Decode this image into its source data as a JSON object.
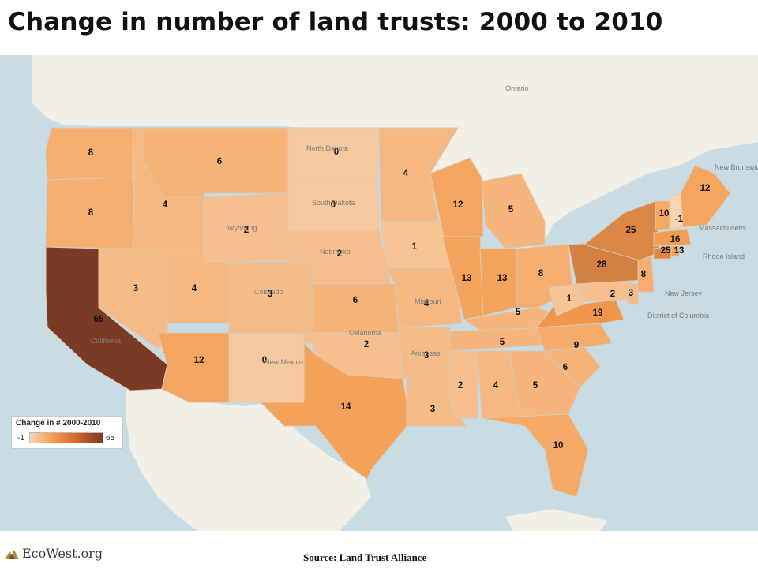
{
  "title": "Change in number of land trusts: 2000 to 2010",
  "legend": {
    "title": "Change in # 2000-2010",
    "min": "-1",
    "max": "65"
  },
  "colors": {
    "low": "#f8d5b2",
    "mid": "#f39a4e",
    "high": "#7a3a25",
    "water": "#c9dbe3",
    "land": "#f1efe6"
  },
  "basemap_labels": [
    "Ontario",
    "North Dakota",
    "South Dakota",
    "Wyoming",
    "Nebraska",
    "Colorado",
    "California",
    "New Mexico",
    "Oklahoma",
    "Arkansas",
    "Missouri",
    "New Brunswick",
    "Massachusetts",
    "Rhode Island",
    "New Jersey",
    "District of Columbia"
  ],
  "chart_data": {
    "type": "choropleth",
    "title": "Change in number of land trusts: 2000 to 2010",
    "states": [
      {
        "state": "WA",
        "value": 8
      },
      {
        "state": "OR",
        "value": 8
      },
      {
        "state": "CA",
        "value": 65
      },
      {
        "state": "ID",
        "value": 4
      },
      {
        "state": "NV",
        "value": 3
      },
      {
        "state": "MT",
        "value": 6
      },
      {
        "state": "WY",
        "value": 2
      },
      {
        "state": "UT",
        "value": 4
      },
      {
        "state": "CO",
        "value": 3
      },
      {
        "state": "AZ",
        "value": 12
      },
      {
        "state": "NM",
        "value": 0
      },
      {
        "state": "ND",
        "value": 0
      },
      {
        "state": "SD",
        "value": 0
      },
      {
        "state": "NE",
        "value": 2
      },
      {
        "state": "KS",
        "value": 6
      },
      {
        "state": "OK",
        "value": 2
      },
      {
        "state": "TX",
        "value": 14
      },
      {
        "state": "MN",
        "value": 4
      },
      {
        "state": "IA",
        "value": 1
      },
      {
        "state": "MO",
        "value": 4
      },
      {
        "state": "AR",
        "value": 3
      },
      {
        "state": "LA",
        "value": 3
      },
      {
        "state": "WI",
        "value": 12
      },
      {
        "state": "IL",
        "value": 13
      },
      {
        "state": "MI",
        "value": 5
      },
      {
        "state": "IN",
        "value": 13
      },
      {
        "state": "OH",
        "value": 8
      },
      {
        "state": "KY",
        "value": 5
      },
      {
        "state": "TN",
        "value": 5
      },
      {
        "state": "MS",
        "value": 2
      },
      {
        "state": "AL",
        "value": 4
      },
      {
        "state": "GA",
        "value": 5
      },
      {
        "state": "FL",
        "value": 10
      },
      {
        "state": "SC",
        "value": 6
      },
      {
        "state": "NC",
        "value": 9
      },
      {
        "state": "VA",
        "value": 19
      },
      {
        "state": "WV",
        "value": 1
      },
      {
        "state": "MD",
        "value": 2
      },
      {
        "state": "DE",
        "value": 3
      },
      {
        "state": "PA",
        "value": 28
      },
      {
        "state": "NJ",
        "value": 8
      },
      {
        "state": "NY",
        "value": 25
      },
      {
        "state": "CT",
        "value": 25
      },
      {
        "state": "RI",
        "value": 13
      },
      {
        "state": "MA",
        "value": 16
      },
      {
        "state": "VT",
        "value": 10
      },
      {
        "state": "NH",
        "value": -1
      },
      {
        "state": "ME",
        "value": 12
      }
    ]
  },
  "footer": {
    "logo_text": "EcoWest.org",
    "source": "Source: Land Trust Alliance"
  }
}
